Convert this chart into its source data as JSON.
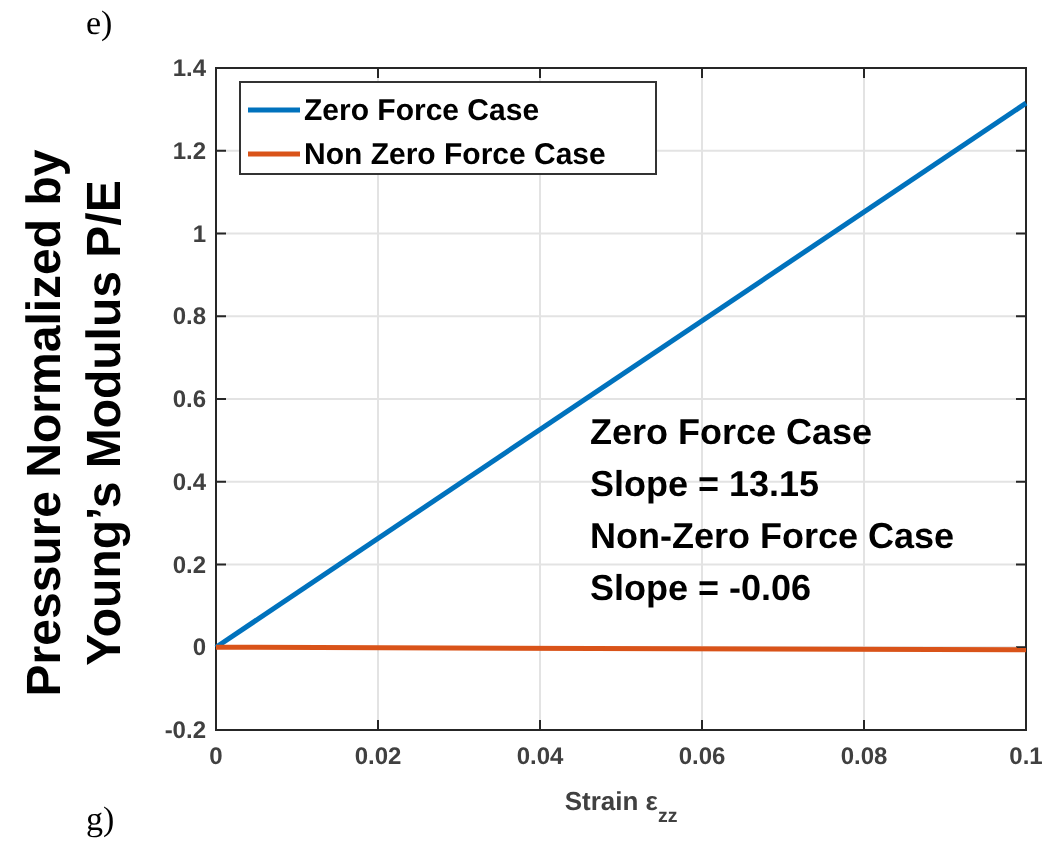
{
  "chart_data": {
    "type": "line",
    "xlabel": "Strain ε$_{zz}$",
    "ylabel": "Pressure Normalized by\nYoung’s Modulus P/E",
    "x": [
      0,
      0.1
    ],
    "series": [
      {
        "name": "Zero Force Case",
        "color": "#0072bd",
        "values": [
          0,
          1.315
        ]
      },
      {
        "name": "Non Zero Force Case",
        "color": "#d95319",
        "values": [
          0,
          -0.006
        ]
      }
    ],
    "xlim": [
      0,
      0.1
    ],
    "xticks": [
      0,
      0.02,
      0.04,
      0.06,
      0.08,
      0.1
    ],
    "ylim": [
      -0.2,
      1.4
    ],
    "yticks": [
      -0.2,
      0,
      0.2,
      0.4,
      0.6,
      0.8,
      1,
      1.2,
      1.4
    ],
    "grid": true,
    "legend": "top left",
    "annotations": [
      "e)",
      "Zero Force Case\nSlope = 13.15\nNon-Zero Force Case\nSlope = -0.06",
      "g)"
    ]
  }
}
